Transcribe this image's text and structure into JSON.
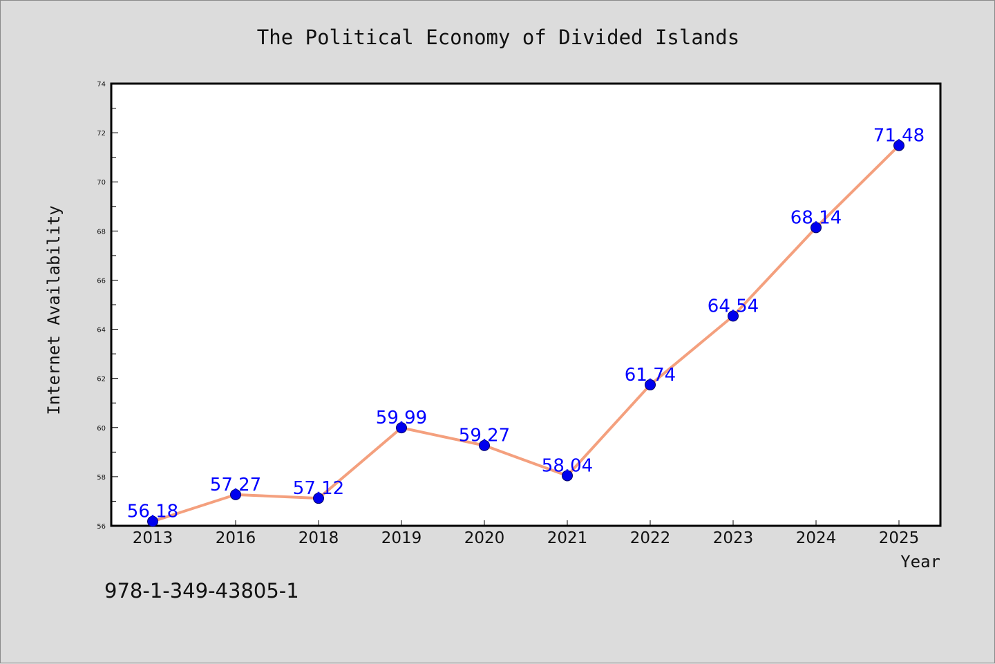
{
  "chart_data": {
    "type": "line",
    "title": "The Political Economy of Divided Islands",
    "xlabel": "Year",
    "ylabel": "Internet Availability",
    "categories": [
      "2013",
      "2016",
      "2018",
      "2019",
      "2020",
      "2021",
      "2022",
      "2023",
      "2024",
      "2025"
    ],
    "series": [
      {
        "values": [
          56.18,
          57.27,
          57.12,
          59.99,
          59.27,
          58.04,
          61.74,
          64.54,
          68.14,
          71.48
        ],
        "labels": [
          "56.18",
          "57.27",
          "57.12",
          "59.99",
          "59.27",
          "58.04",
          "61.74",
          "64.54",
          "68.14",
          "71.48"
        ],
        "line_color": "#f4a07e",
        "marker_color": "#0000ee"
      }
    ],
    "ylim": [
      56,
      74
    ],
    "yticks": [
      "56",
      "58",
      "60",
      "62",
      "64",
      "66",
      "68",
      "70",
      "72",
      "74"
    ],
    "grid": false,
    "legend": "none"
  },
  "footer": {
    "isbn": "978-1-349-43805-1"
  }
}
